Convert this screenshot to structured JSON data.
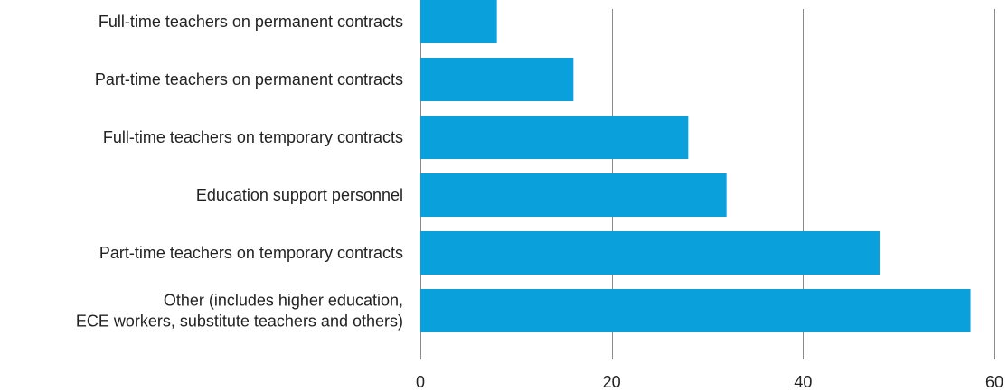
{
  "chart_data": {
    "type": "bar",
    "orientation": "horizontal",
    "categories": [
      [
        "Full-time teachers on permanent contracts"
      ],
      [
        "Part-time teachers on permanent contracts"
      ],
      [
        "Full-time teachers on temporary contracts"
      ],
      [
        "Education support personnel"
      ],
      [
        "Part-time teachers on temporary contracts"
      ],
      [
        "Other (includes higher education,",
        "ECE workers, substitute teachers and others)"
      ]
    ],
    "values": [
      8,
      16,
      28,
      32,
      48,
      57.5
    ],
    "xlim": [
      0,
      60
    ],
    "xticks": [
      "0",
      "20",
      "40",
      "60"
    ],
    "xtick_values": [
      0,
      20,
      40,
      60
    ],
    "grid": "vertical",
    "title": "",
    "xlabel": "",
    "ylabel": "",
    "bar_color": "#0aa0dc"
  }
}
